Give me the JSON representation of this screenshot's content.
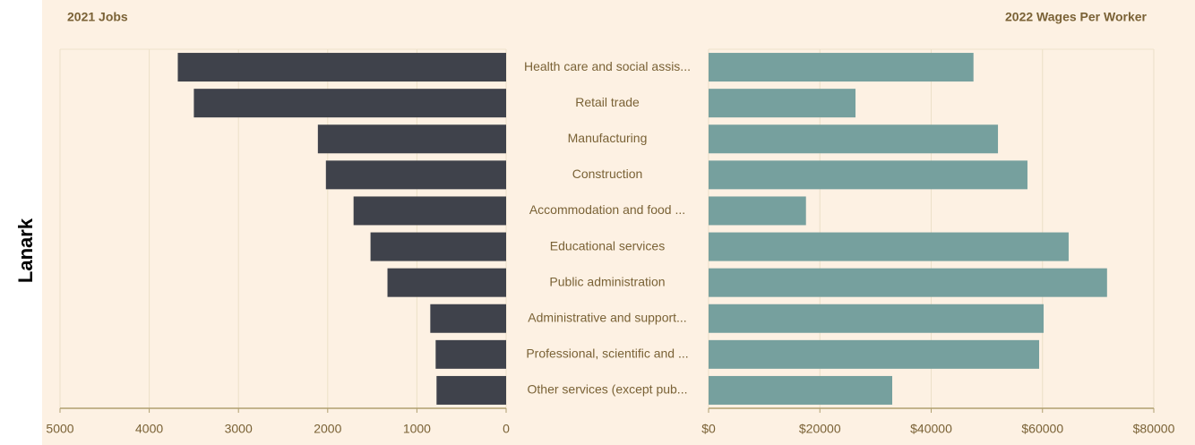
{
  "side_label": "Lanark",
  "chart_data": [
    {
      "type": "bar",
      "orientation": "horizontal",
      "title": "2021 Jobs",
      "categories": [
        "Health care and social assis...",
        "Retail trade",
        "Manufacturing",
        "Construction",
        "Accommodation and food ...",
        "Educational services",
        "Public administration",
        "Administrative and support...",
        "Professional, scientific and ...",
        "Other services (except pub..."
      ],
      "values": [
        3680,
        3500,
        2110,
        2020,
        1710,
        1520,
        1330,
        850,
        790,
        780
      ],
      "color": "#3f424b",
      "xlim": [
        5000,
        0
      ],
      "xticks": [
        5000,
        4000,
        3000,
        2000,
        1000,
        0
      ],
      "grid": true
    },
    {
      "type": "bar",
      "orientation": "horizontal",
      "title": "2022 Wages Per Worker",
      "values": [
        47600,
        26400,
        52000,
        57300,
        17500,
        64700,
        71600,
        60200,
        59400,
        33000
      ],
      "color": "#76a09e",
      "xlim": [
        0,
        80000
      ],
      "xticks": [
        {
          "value": 0,
          "label": "$0"
        },
        {
          "value": 20000,
          "label": "$20000"
        },
        {
          "value": 40000,
          "label": "$40000"
        },
        {
          "value": 60000,
          "label": "$60000"
        },
        {
          "value": 80000,
          "label": "$80000"
        }
      ],
      "grid": true
    }
  ]
}
